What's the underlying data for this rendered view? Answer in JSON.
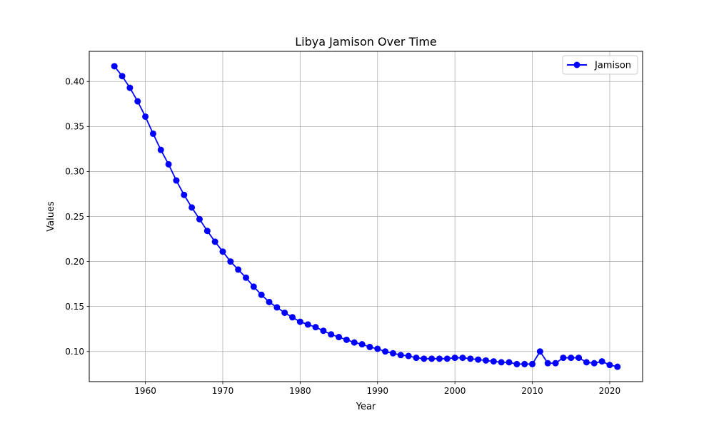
{
  "chart_data": {
    "type": "line",
    "title": "Libya Jamison Over Time",
    "xlabel": "Year",
    "ylabel": "Values",
    "xlim": [
      1952.75,
      2024.25
    ],
    "ylim": [
      0.0665,
      0.4335
    ],
    "x_ticks": [
      1960,
      1970,
      1980,
      1990,
      2000,
      2010,
      2020
    ],
    "y_ticks": [
      0.1,
      0.15,
      0.2,
      0.25,
      0.3,
      0.35,
      0.4
    ],
    "x_tick_labels": [
      "1960",
      "1970",
      "1980",
      "1990",
      "2000",
      "2010",
      "2020"
    ],
    "y_tick_labels": [
      "0.10",
      "0.15",
      "0.20",
      "0.25",
      "0.30",
      "0.35",
      "0.40"
    ],
    "grid": true,
    "legend_position": "top-right",
    "series": [
      {
        "name": "Jamison",
        "color": "#0000ff",
        "marker": "circle",
        "x": [
          1956,
          1957,
          1958,
          1959,
          1960,
          1961,
          1962,
          1963,
          1964,
          1965,
          1966,
          1967,
          1968,
          1969,
          1970,
          1971,
          1972,
          1973,
          1974,
          1975,
          1976,
          1977,
          1978,
          1979,
          1980,
          1981,
          1982,
          1983,
          1984,
          1985,
          1986,
          1987,
          1988,
          1989,
          1990,
          1991,
          1992,
          1993,
          1994,
          1995,
          1996,
          1997,
          1998,
          1999,
          2000,
          2001,
          2002,
          2003,
          2004,
          2005,
          2006,
          2007,
          2008,
          2009,
          2010,
          2011,
          2012,
          2013,
          2014,
          2015,
          2016,
          2017,
          2018,
          2019,
          2020,
          2021
        ],
        "y": [
          0.417,
          0.406,
          0.393,
          0.378,
          0.361,
          0.342,
          0.324,
          0.308,
          0.29,
          0.274,
          0.26,
          0.247,
          0.234,
          0.222,
          0.211,
          0.2,
          0.191,
          0.182,
          0.172,
          0.163,
          0.155,
          0.149,
          0.143,
          0.138,
          0.133,
          0.13,
          0.127,
          0.123,
          0.119,
          0.116,
          0.113,
          0.11,
          0.108,
          0.105,
          0.103,
          0.1,
          0.098,
          0.096,
          0.095,
          0.093,
          0.092,
          0.092,
          0.092,
          0.092,
          0.093,
          0.093,
          0.092,
          0.091,
          0.09,
          0.089,
          0.088,
          0.088,
          0.086,
          0.086,
          0.086,
          0.1,
          0.087,
          0.087,
          0.093,
          0.093,
          0.093,
          0.088,
          0.087,
          0.089,
          0.085,
          0.083
        ]
      }
    ]
  }
}
